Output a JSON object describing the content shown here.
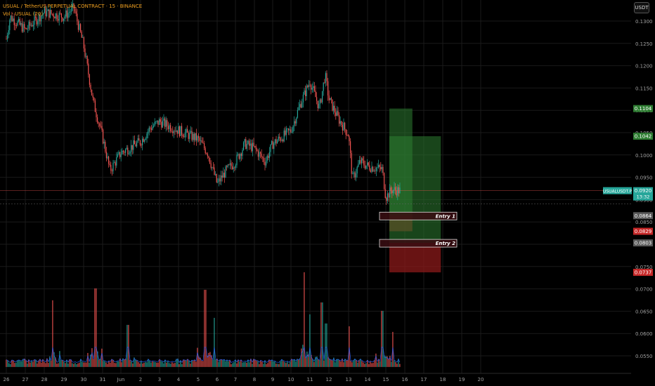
{
  "header": {
    "symbol_line": "USUAL / TetherUS PERPETUAL CONTRACT · 15 · BINANCE",
    "indicator_line": "Vol · USUAL (20)",
    "currency_button": "USDT"
  },
  "colors": {
    "up": "#26a69a",
    "down": "#ef5350",
    "background": "#000000",
    "grid": "#1a1a1a",
    "long_zone": "#2e7d32",
    "stop_zone": "#8b1a1a",
    "current_price_label": "#26a69a",
    "volume_ma": "#2962ff"
  },
  "chart_data": {
    "type": "candlestick",
    "title": "USUAL / TetherUS PERPETUAL CONTRACT · 15 · BINANCE",
    "ylim": [
      0.0525,
      0.1335
    ],
    "y_ticks": [
      "0.1300",
      "0.1250",
      "0.1200",
      "0.1150",
      "0.1100",
      "0.1050",
      "0.1000",
      "0.0950",
      "0.0900",
      "0.0850",
      "0.0800",
      "0.0750",
      "0.0700",
      "0.0650",
      "0.0600",
      "0.0550"
    ],
    "x_ticks": [
      "26",
      "27",
      "28",
      "29",
      "30",
      "31",
      "Jun",
      "2",
      "3",
      "4",
      "5",
      "6",
      "7",
      "8",
      "9",
      "10",
      "11",
      "12",
      "13",
      "14",
      "15",
      "16",
      "17",
      "18",
      "19",
      "20"
    ],
    "price_path": [
      {
        "t": "26",
        "p": 0.126
      },
      {
        "t": "26.2",
        "p": 0.131
      },
      {
        "t": "27",
        "p": 0.128
      },
      {
        "t": "28",
        "p": 0.132
      },
      {
        "t": "29",
        "p": 0.131
      },
      {
        "t": "29.5",
        "p": 0.133
      },
      {
        "t": "30",
        "p": 0.1245
      },
      {
        "t": "30.5",
        "p": 0.112
      },
      {
        "t": "31",
        "p": 0.104
      },
      {
        "t": "31.4",
        "p": 0.0965
      },
      {
        "t": "Jun",
        "p": 0.1005
      },
      {
        "t": "2",
        "p": 0.103
      },
      {
        "t": "2.5",
        "p": 0.106
      },
      {
        "t": "3",
        "p": 0.1075
      },
      {
        "t": "4",
        "p": 0.1055
      },
      {
        "t": "5",
        "p": 0.1035
      },
      {
        "t": "5.5",
        "p": 0.1005
      },
      {
        "t": "6",
        "p": 0.0935
      },
      {
        "t": "6.5",
        "p": 0.0965
      },
      {
        "t": "7",
        "p": 0.0985
      },
      {
        "t": "7.5",
        "p": 0.1025
      },
      {
        "t": "8",
        "p": 0.1015
      },
      {
        "t": "8.6",
        "p": 0.0985
      },
      {
        "t": "9",
        "p": 0.1025
      },
      {
        "t": "10",
        "p": 0.1055
      },
      {
        "t": "10.5",
        "p": 0.1115
      },
      {
        "t": "11",
        "p": 0.1165
      },
      {
        "t": "11.5",
        "p": 0.1105
      },
      {
        "t": "11.8",
        "p": 0.118
      },
      {
        "t": "12",
        "p": 0.1125
      },
      {
        "t": "12.5",
        "p": 0.108
      },
      {
        "t": "13",
        "p": 0.1045
      },
      {
        "t": "13.2",
        "p": 0.0945
      },
      {
        "t": "13.6",
        "p": 0.0985
      },
      {
        "t": "14",
        "p": 0.0975
      },
      {
        "t": "14.8",
        "p": 0.0968
      },
      {
        "t": "15",
        "p": 0.0905
      },
      {
        "t": "15.3",
        "p": 0.0922
      },
      {
        "t": "15.8",
        "p": 0.092
      }
    ],
    "price_labels": [
      {
        "value": 0.1104,
        "text": "0.1104",
        "color": "#2e7d32"
      },
      {
        "value": 0.1042,
        "text": "0.1042",
        "color": "#2e7d32"
      },
      {
        "value": 0.092,
        "text": "0.0920",
        "color": "#26a69a",
        "tag": "USUALUSDT.P",
        "countdown": "13:32"
      },
      {
        "value": 0.0864,
        "text": "0.0864",
        "color": "#5a5a5a"
      },
      {
        "value": 0.0829,
        "text": "0.0829",
        "color": "#c62828"
      },
      {
        "value": 0.0803,
        "text": "0.0803",
        "color": "#5a5a5a"
      },
      {
        "value": 0.0737,
        "text": "0.0737",
        "color": "#c62828"
      }
    ],
    "positions": [
      {
        "label": "Entry 1",
        "x_start": "15",
        "x_end": "16.4",
        "entry": 0.0864,
        "target": 0.1104,
        "stop": 0.0829
      },
      {
        "label": "Entry 2",
        "x_start": "15",
        "x_end": "17.9",
        "entry": 0.0803,
        "target": 0.1042,
        "stop": 0.0737
      }
    ],
    "volume_panel": {
      "price_from": 0.0525,
      "price_to": 0.0715
    }
  }
}
